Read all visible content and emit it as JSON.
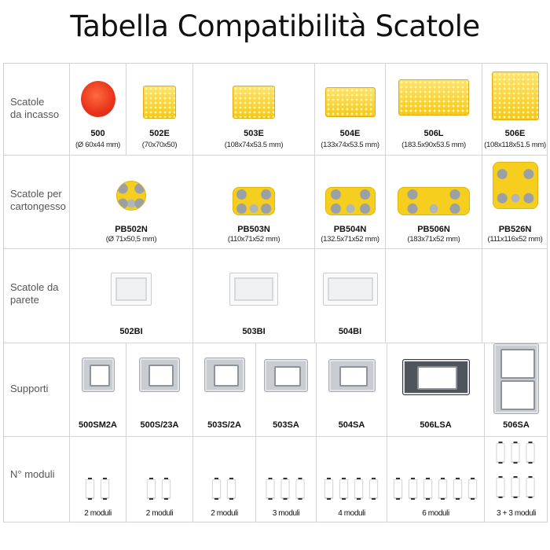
{
  "title": "Tabella Compatibilità Scatole",
  "rows": [
    {
      "label": "Scatole\nda incasso",
      "items": [
        {
          "name": "500",
          "dims": "(Ø 60x44 mm)",
          "icon": "red-round-box"
        },
        {
          "name": "502E",
          "dims": "(70x70x50)",
          "icon": "yellow-square-box"
        },
        {
          "name": "503E",
          "dims": "(108x74x53.5 mm)",
          "icon": "yellow-rect-box"
        },
        {
          "name": "504E",
          "dims": "(133x74x53.5 mm)",
          "icon": "yellow-rect-box"
        },
        {
          "name": "506L",
          "dims": "(183.5x90x53.5 mm)",
          "icon": "yellow-rect-box"
        },
        {
          "name": "506E",
          "dims": "(108x118x51.5 mm)",
          "icon": "yellow-square-box"
        }
      ]
    },
    {
      "label": "Scatole per\ncartongesso",
      "items": [
        {
          "name": "PB502N",
          "dims": "(Ø 71x50,5 mm)",
          "icon": "drywall-round-box"
        },
        {
          "name": "PB503N",
          "dims": "(110x71x52 mm)",
          "icon": "drywall-rect-box"
        },
        {
          "name": "PB504N",
          "dims": "(132.5x71x52 mm)",
          "icon": "drywall-rect-box"
        },
        {
          "name": "PB506N",
          "dims": "(183x71x52 mm)",
          "icon": "drywall-rect-box"
        },
        {
          "name": "PB526N",
          "dims": "(111x116x52 mm)",
          "icon": "drywall-square-box"
        }
      ]
    },
    {
      "label": "Scatole da\nparete",
      "items": [
        {
          "name": "502BI",
          "icon": "wall-box"
        },
        {
          "name": "503BI",
          "icon": "wall-box"
        },
        {
          "name": "504BI",
          "icon": "wall-box"
        },
        {
          "name": ""
        },
        {
          "name": ""
        }
      ]
    },
    {
      "label": "Supporti",
      "items": [
        {
          "name": "500SM2A",
          "icon": "support-frame"
        },
        {
          "name": "500S/23A",
          "icon": "support-frame"
        },
        {
          "name": "503S/2A",
          "icon": "support-frame"
        },
        {
          "name": "503SA",
          "icon": "support-frame"
        },
        {
          "name": "504SA",
          "icon": "support-frame"
        },
        {
          "name": "506LSA",
          "icon": "support-frame-dark"
        },
        {
          "name": "506SA",
          "icon": "support-frame-double"
        }
      ]
    },
    {
      "label": "N° moduli",
      "items": [
        {
          "name": "2 moduli",
          "modules": 2
        },
        {
          "name": "2 moduli",
          "modules": 2
        },
        {
          "name": "2 moduli",
          "modules": 2
        },
        {
          "name": "3 moduli",
          "modules": 3
        },
        {
          "name": "4 moduli",
          "modules": 4
        },
        {
          "name": "6 moduli",
          "modules": 6
        },
        {
          "name": "3 + 3 moduli",
          "modules": 6
        }
      ]
    }
  ]
}
